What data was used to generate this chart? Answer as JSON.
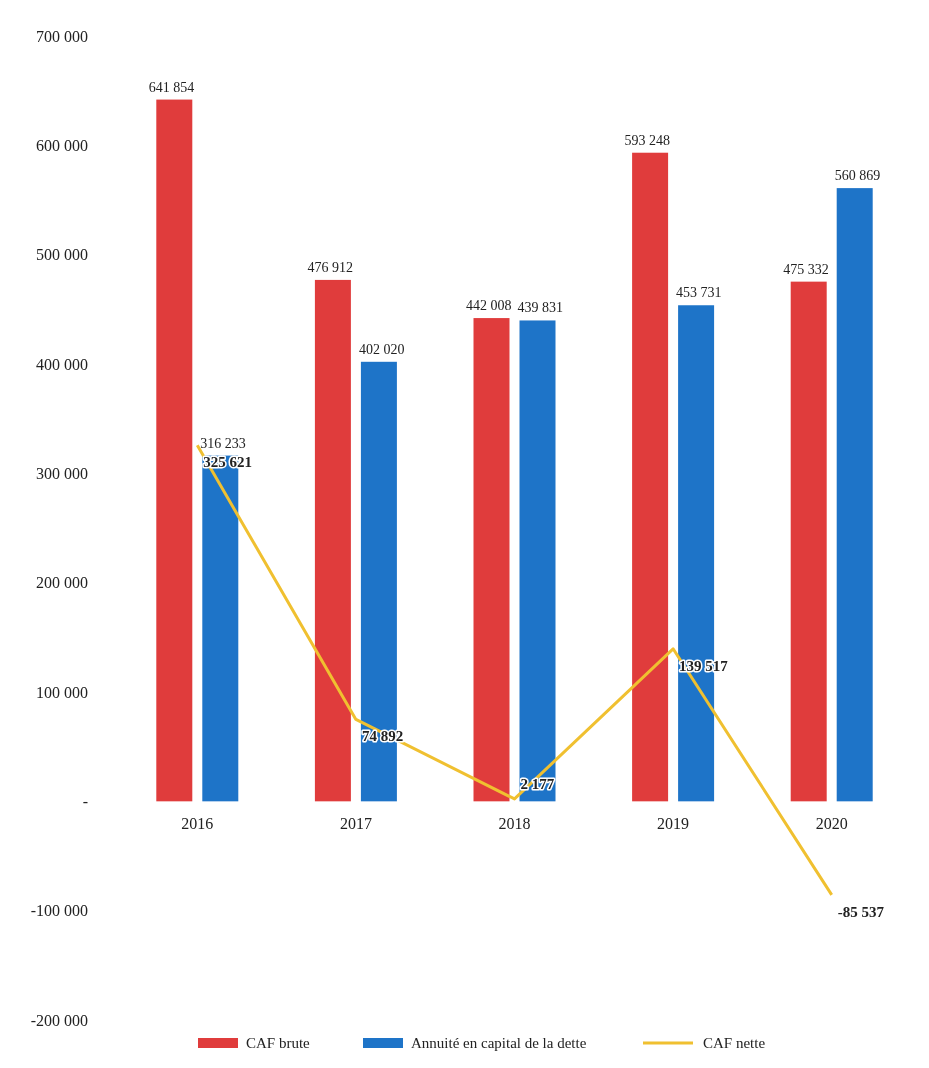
{
  "chart_data": {
    "type": "bar",
    "categories": [
      "2016",
      "2017",
      "2018",
      "2019",
      "2020"
    ],
    "series": [
      {
        "name": "CAF brute",
        "color": "#e03c3c",
        "values": [
          641854,
          476912,
          442008,
          593248,
          475332
        ],
        "value_labels": [
          "641 854",
          "476 912",
          "442 008",
          "593 248",
          "475 332"
        ]
      },
      {
        "name": "Annuité en capital de la dette",
        "color": "#1e74c8",
        "values": [
          316233,
          402020,
          439831,
          453731,
          560869
        ],
        "value_labels": [
          "316 233",
          "402 020",
          "439 831",
          "453 731",
          "560 869"
        ]
      },
      {
        "name": "CAF nette",
        "type": "line",
        "color": "#f0c030",
        "values": [
          325621,
          74892,
          2177,
          139517,
          -85537
        ],
        "value_labels": [
          "325 621",
          "74 892",
          "2 177",
          "139 517",
          "-85 537"
        ]
      }
    ],
    "ylim": [
      -200000,
      700000
    ],
    "yticks": [
      {
        "value": -200000,
        "label": "-200 000"
      },
      {
        "value": -100000,
        "label": "-100 000"
      },
      {
        "value": 0,
        "label": "-"
      },
      {
        "value": 100000,
        "label": "100 000"
      },
      {
        "value": 200000,
        "label": "200 000"
      },
      {
        "value": 300000,
        "label": "300 000"
      },
      {
        "value": 400000,
        "label": "400 000"
      },
      {
        "value": 500000,
        "label": "500 000"
      },
      {
        "value": 600000,
        "label": "600 000"
      },
      {
        "value": 700000,
        "label": "700 000"
      }
    ],
    "grid": false,
    "legend": "bottom"
  }
}
